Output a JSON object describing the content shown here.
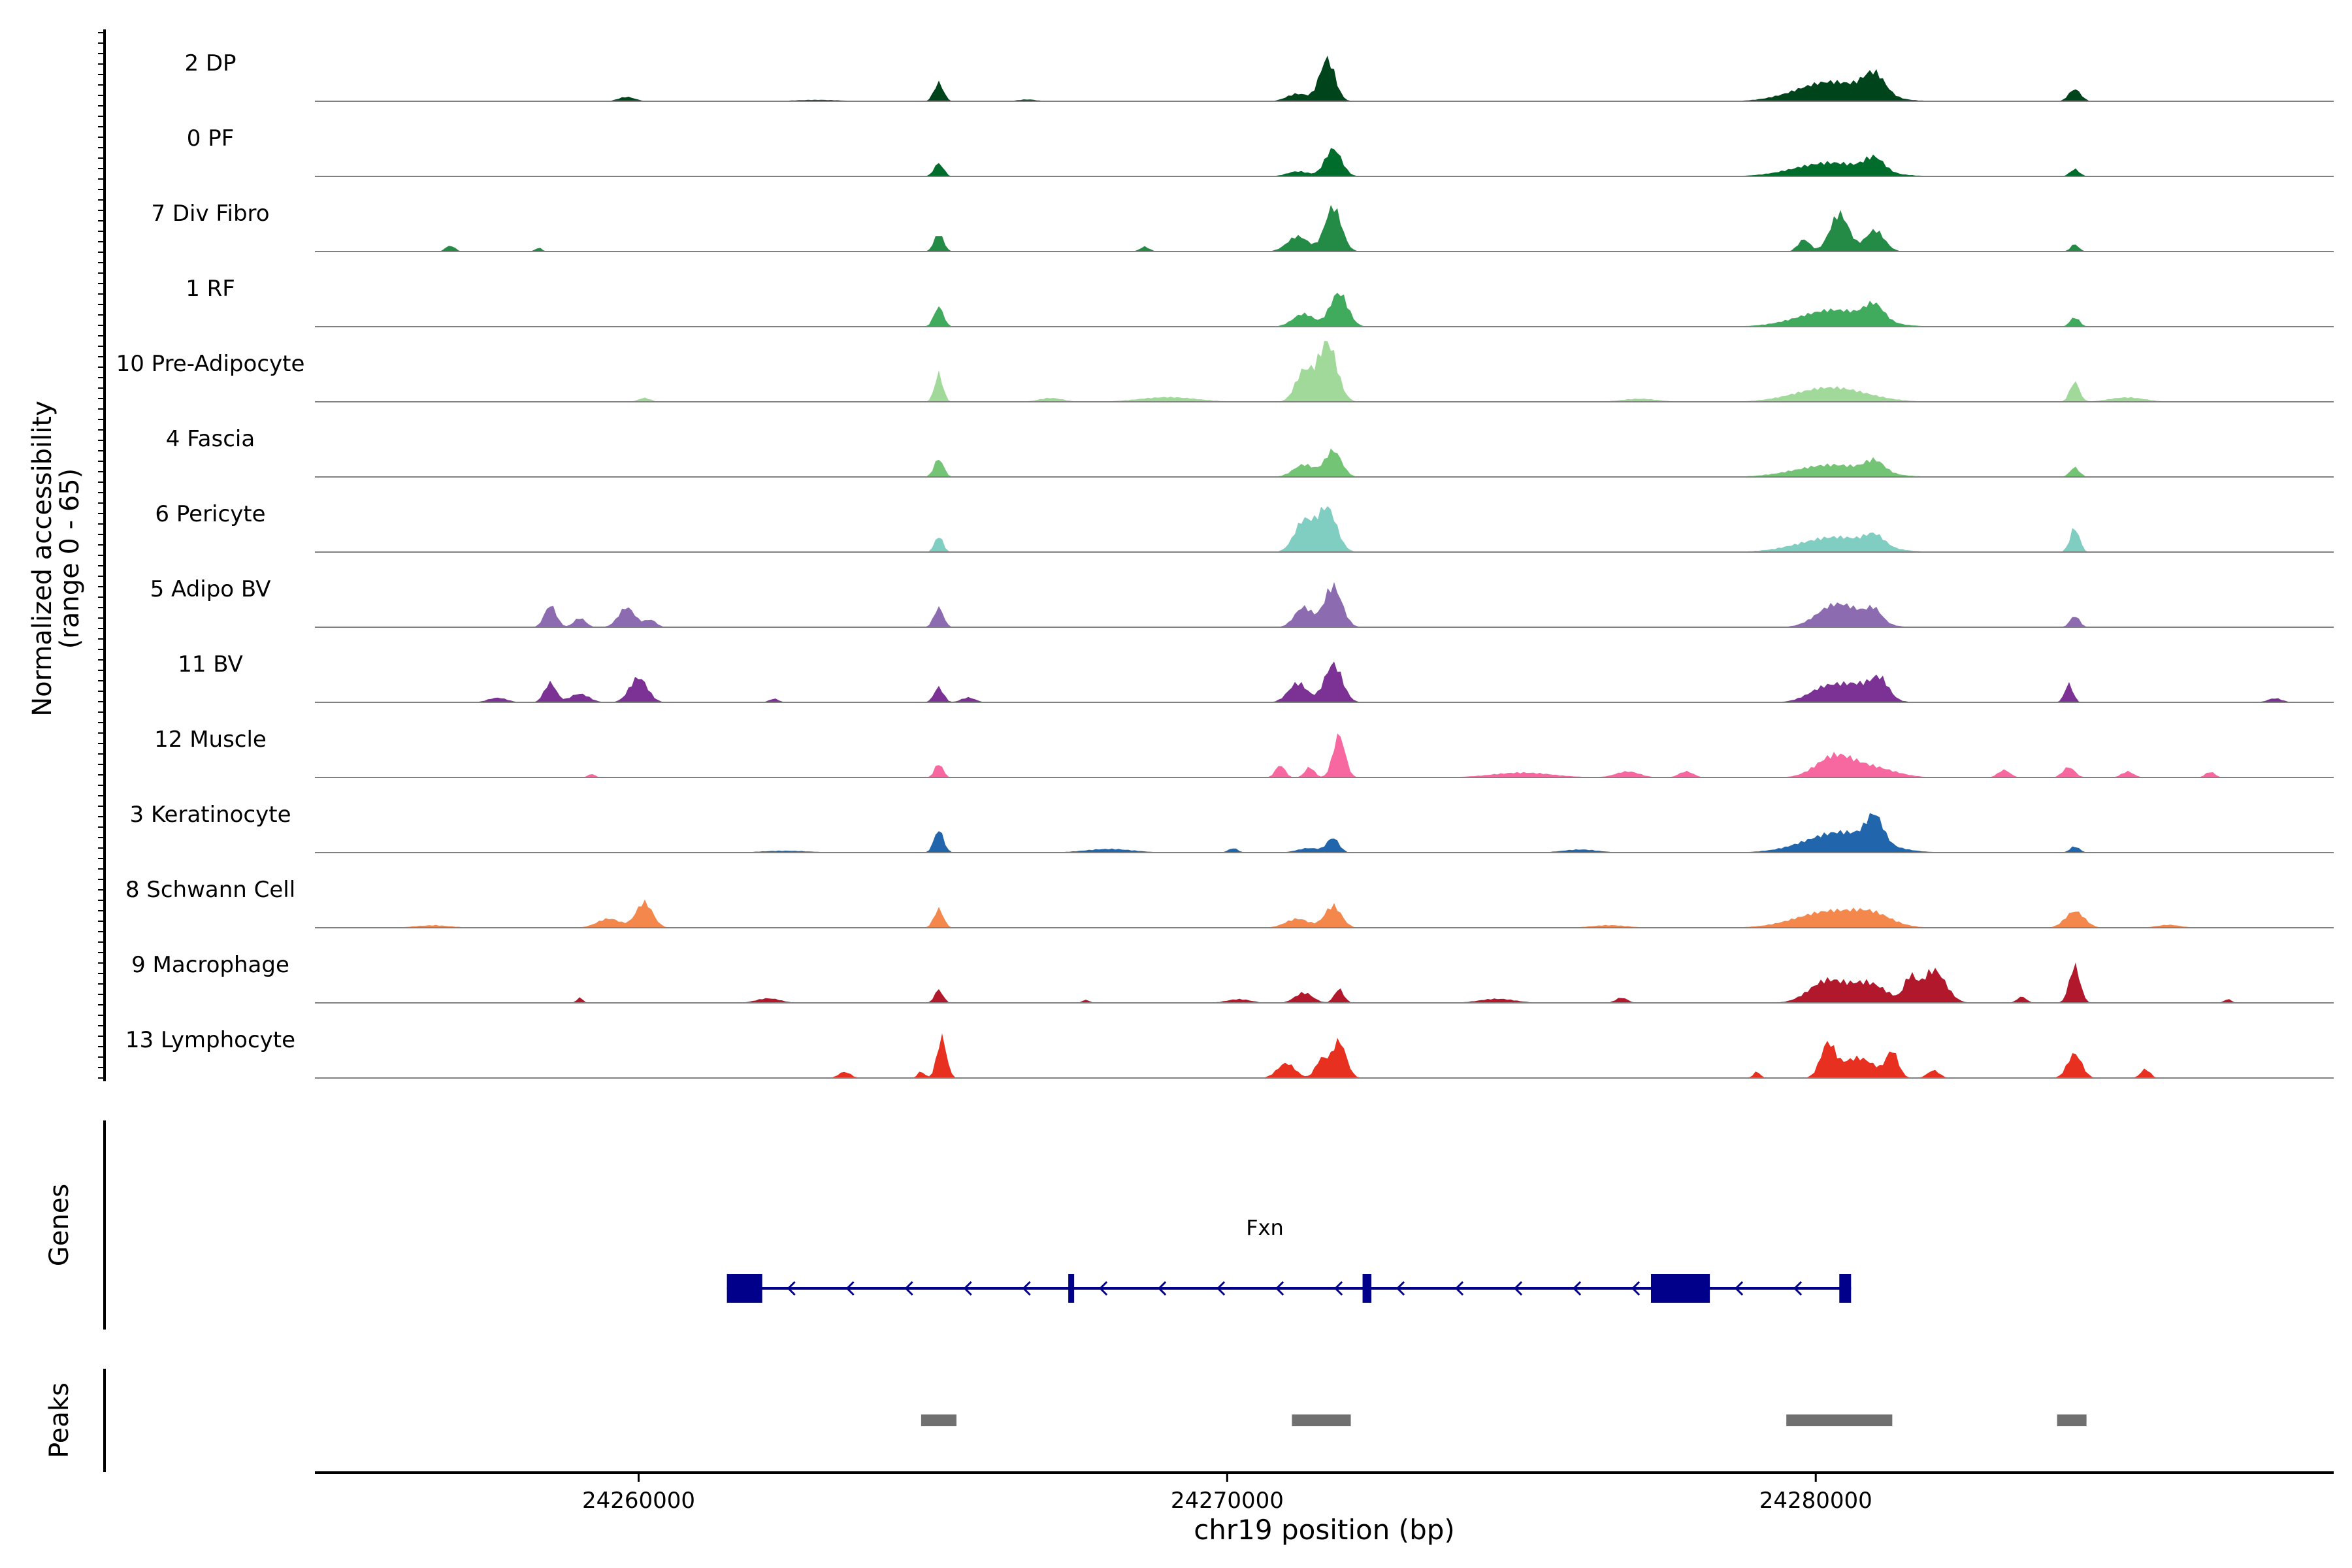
{
  "chart_data": {
    "type": "area",
    "title": "",
    "xlabel": "chr19 position (bp)",
    "ylabel": "Normalized accessibility",
    "ylabel_range": "(range 0 - 65)",
    "ylim": [
      0,
      65
    ],
    "xlim": [
      24254500,
      24288800
    ],
    "x_ticks": [
      24260000,
      24270000,
      24280000
    ],
    "x_tick_labels": [
      "24260000",
      "24270000",
      "24280000"
    ],
    "track_labels": {
      "genes": "Genes",
      "peaks": "Peaks"
    },
    "series": [
      {
        "name": "2 DP",
        "color": "#00441B",
        "peaks": [
          [
            24259800,
            6,
            140
          ],
          [
            24265100,
            26,
            80
          ],
          [
            24266600,
            3,
            160
          ],
          [
            24271700,
            70,
            130
          ],
          [
            24271200,
            12,
            180
          ],
          [
            24280300,
            26,
            600
          ],
          [
            24281000,
            30,
            180
          ],
          [
            24284400,
            16,
            100
          ],
          [
            24263000,
            2,
            400
          ]
        ]
      },
      {
        "name": "0 PF",
        "color": "#006D2C",
        "peaks": [
          [
            24265100,
            22,
            80
          ],
          [
            24271800,
            40,
            140
          ],
          [
            24271200,
            8,
            180
          ],
          [
            24280300,
            22,
            600
          ],
          [
            24281000,
            22,
            160
          ],
          [
            24284400,
            10,
            80
          ]
        ]
      },
      {
        "name": "7 Div Fibro",
        "color": "#238B45",
        "peaks": [
          [
            24256800,
            8,
            80
          ],
          [
            24258300,
            6,
            60
          ],
          [
            24265100,
            26,
            80
          ],
          [
            24268600,
            8,
            80
          ],
          [
            24271800,
            58,
            140
          ],
          [
            24271200,
            20,
            180
          ],
          [
            24279800,
            20,
            100
          ],
          [
            24280400,
            58,
            160
          ],
          [
            24281000,
            30,
            160
          ],
          [
            24284400,
            12,
            70
          ]
        ]
      },
      {
        "name": "1 RF",
        "color": "#41AB5D",
        "peaks": [
          [
            24265100,
            26,
            80
          ],
          [
            24271900,
            52,
            150
          ],
          [
            24271300,
            18,
            180
          ],
          [
            24280300,
            22,
            600
          ],
          [
            24281000,
            20,
            160
          ],
          [
            24284400,
            14,
            80
          ]
        ]
      },
      {
        "name": "10 Pre-Adipocyte",
        "color": "#A1D99B",
        "peaks": [
          [
            24265100,
            42,
            70
          ],
          [
            24271700,
            98,
            160
          ],
          [
            24271300,
            50,
            140
          ],
          [
            24269000,
            6,
            500
          ],
          [
            24280300,
            20,
            600
          ],
          [
            24284400,
            26,
            80
          ],
          [
            24285300,
            6,
            300
          ],
          [
            24260100,
            6,
            100
          ],
          [
            24267000,
            6,
            200
          ],
          [
            24277000,
            5,
            300
          ]
        ]
      },
      {
        "name": "4 Fascia",
        "color": "#74C476",
        "peaks": [
          [
            24265100,
            30,
            80
          ],
          [
            24271800,
            36,
            140
          ],
          [
            24271300,
            18,
            180
          ],
          [
            24280300,
            20,
            600
          ],
          [
            24281000,
            18,
            160
          ],
          [
            24284400,
            14,
            80
          ]
        ]
      },
      {
        "name": "6 Pericyte",
        "color": "#80CDC1",
        "peaks": [
          [
            24265100,
            22,
            70
          ],
          [
            24271700,
            58,
            160
          ],
          [
            24271300,
            40,
            160
          ],
          [
            24280300,
            22,
            600
          ],
          [
            24281000,
            14,
            160
          ],
          [
            24284400,
            40,
            80
          ]
        ]
      },
      {
        "name": "5 Adipo BV",
        "color": "#8C6BB1",
        "peaks": [
          [
            24258500,
            30,
            100
          ],
          [
            24259000,
            12,
            100
          ],
          [
            24259800,
            26,
            140
          ],
          [
            24260200,
            10,
            100
          ],
          [
            24265100,
            26,
            80
          ],
          [
            24271800,
            66,
            150
          ],
          [
            24271300,
            30,
            150
          ],
          [
            24280300,
            26,
            300
          ],
          [
            24280800,
            14,
            300
          ],
          [
            24281000,
            14,
            120
          ],
          [
            24284400,
            16,
            80
          ]
        ]
      },
      {
        "name": "11 BV",
        "color": "#7B3294",
        "peaks": [
          [
            24258500,
            26,
            100
          ],
          [
            24259000,
            12,
            160
          ],
          [
            24260000,
            40,
            150
          ],
          [
            24257600,
            6,
            160
          ],
          [
            24265100,
            24,
            80
          ],
          [
            24265600,
            8,
            120
          ],
          [
            24271800,
            60,
            150
          ],
          [
            24271200,
            32,
            160
          ],
          [
            24280200,
            22,
            300
          ],
          [
            24280800,
            26,
            300
          ],
          [
            24281100,
            26,
            140
          ],
          [
            24284300,
            24,
            70
          ],
          [
            24287800,
            6,
            120
          ],
          [
            24262300,
            5,
            80
          ]
        ]
      },
      {
        "name": "12 Muscle",
        "color": "#F768A1",
        "peaks": [
          [
            24259200,
            6,
            60
          ],
          [
            24265100,
            22,
            70
          ],
          [
            24270900,
            18,
            80
          ],
          [
            24271900,
            56,
            100
          ],
          [
            24271400,
            14,
            80
          ],
          [
            24275000,
            8,
            500
          ],
          [
            24276800,
            8,
            200
          ],
          [
            24277800,
            8,
            120
          ],
          [
            24280300,
            32,
            300
          ],
          [
            24280900,
            16,
            400
          ],
          [
            24283200,
            10,
            100
          ],
          [
            24284300,
            16,
            100
          ],
          [
            24285300,
            10,
            100
          ],
          [
            24286700,
            8,
            80
          ]
        ]
      },
      {
        "name": "3 Keratinocyte",
        "color": "#2166AC",
        "peaks": [
          [
            24265100,
            30,
            80
          ],
          [
            24271800,
            20,
            100
          ],
          [
            24271400,
            6,
            200
          ],
          [
            24270100,
            6,
            80
          ],
          [
            24268000,
            6,
            400
          ],
          [
            24280400,
            28,
            600
          ],
          [
            24281000,
            34,
            140
          ],
          [
            24284400,
            10,
            80
          ],
          [
            24276000,
            4,
            300
          ],
          [
            24262500,
            3,
            400
          ]
        ]
      },
      {
        "name": "8 Schwann Cell",
        "color": "#F4874B",
        "peaks": [
          [
            24260100,
            36,
            140
          ],
          [
            24259500,
            12,
            200
          ],
          [
            24256500,
            4,
            300
          ],
          [
            24265100,
            26,
            80
          ],
          [
            24271800,
            36,
            140
          ],
          [
            24271200,
            14,
            200
          ],
          [
            24280300,
            22,
            600
          ],
          [
            24281000,
            12,
            300
          ],
          [
            24284400,
            22,
            160
          ],
          [
            24286000,
            4,
            200
          ],
          [
            24276500,
            4,
            300
          ]
        ]
      },
      {
        "name": "9 Macrophage",
        "color": "#B2182B",
        "peaks": [
          [
            24259000,
            8,
            50
          ],
          [
            24262200,
            6,
            200
          ],
          [
            24265100,
            22,
            70
          ],
          [
            24271300,
            16,
            150
          ],
          [
            24271900,
            20,
            80
          ],
          [
            24270200,
            6,
            200
          ],
          [
            24274600,
            6,
            300
          ],
          [
            24276700,
            8,
            100
          ],
          [
            24280200,
            34,
            300
          ],
          [
            24280900,
            32,
            300
          ],
          [
            24282000,
            50,
            200
          ],
          [
            24281600,
            36,
            100
          ],
          [
            24284400,
            50,
            90
          ],
          [
            24283500,
            8,
            80
          ],
          [
            24287000,
            6,
            60
          ],
          [
            24267600,
            4,
            60
          ]
        ]
      },
      {
        "name": "13 Lymphocyte",
        "color": "#E7301F",
        "peaks": [
          [
            24263500,
            10,
            100
          ],
          [
            24265150,
            60,
            80
          ],
          [
            24264800,
            10,
            60
          ],
          [
            24271000,
            20,
            150
          ],
          [
            24271900,
            48,
            120
          ],
          [
            24271600,
            24,
            100
          ],
          [
            24280200,
            50,
            120
          ],
          [
            24280700,
            30,
            300
          ],
          [
            24281300,
            34,
            100
          ],
          [
            24282000,
            10,
            100
          ],
          [
            24284400,
            40,
            120
          ],
          [
            24285600,
            14,
            80
          ],
          [
            24279000,
            10,
            60
          ]
        ]
      }
    ],
    "gene": {
      "name": "Fxn",
      "color": "#00008B",
      "strand": "-",
      "start": 24261500,
      "end": 24280600,
      "exons": [
        [
          24261500,
          24262100
        ],
        [
          24267300,
          24267400
        ],
        [
          24272300,
          24272450
        ],
        [
          24277200,
          24278200
        ],
        [
          24280400,
          24280600
        ]
      ]
    },
    "peaks_track": {
      "color": "#707070",
      "regions": [
        [
          24264800,
          24265400
        ],
        [
          24271100,
          24272100
        ],
        [
          24279500,
          24281300
        ],
        [
          24284100,
          24284600
        ]
      ]
    }
  }
}
